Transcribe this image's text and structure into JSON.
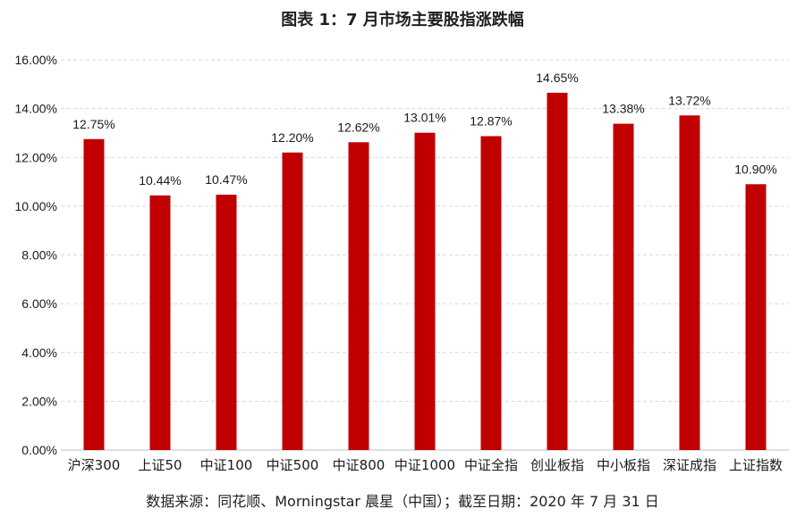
{
  "title": "图表 1：7 月市场主要股指涨跌幅",
  "source": "数据来源：同花顺、Morningstar 晨星（中国）；截至日期：2020 年 7 月 31 日",
  "colors": {
    "bar": "#C00000",
    "grid": "#D9D9D9",
    "axis": "#BFBFBF"
  },
  "chart_data": {
    "type": "bar",
    "title": "图表 1：7 月市场主要股指涨跌幅",
    "xlabel": "",
    "ylabel": "",
    "categories": [
      "沪深300",
      "上证50",
      "中证100",
      "中证500",
      "中证800",
      "中证1000",
      "中证全指",
      "创业板指",
      "中小板指",
      "深证成指",
      "上证指数"
    ],
    "values": [
      12.75,
      10.44,
      10.47,
      12.2,
      12.62,
      13.01,
      12.87,
      14.65,
      13.38,
      13.72,
      10.9
    ],
    "value_labels": [
      "12.75%",
      "10.44%",
      "10.47%",
      "12.20%",
      "12.62%",
      "13.01%",
      "12.87%",
      "14.65%",
      "13.38%",
      "13.72%",
      "10.90%"
    ],
    "ylim": [
      0,
      16
    ],
    "yticks": [
      0,
      2,
      4,
      6,
      8,
      10,
      12,
      14,
      16
    ],
    "ytick_labels": [
      "0.00%",
      "2.00%",
      "4.00%",
      "6.00%",
      "8.00%",
      "10.00%",
      "12.00%",
      "14.00%",
      "16.00%"
    ],
    "grid": true,
    "legend": "none"
  }
}
